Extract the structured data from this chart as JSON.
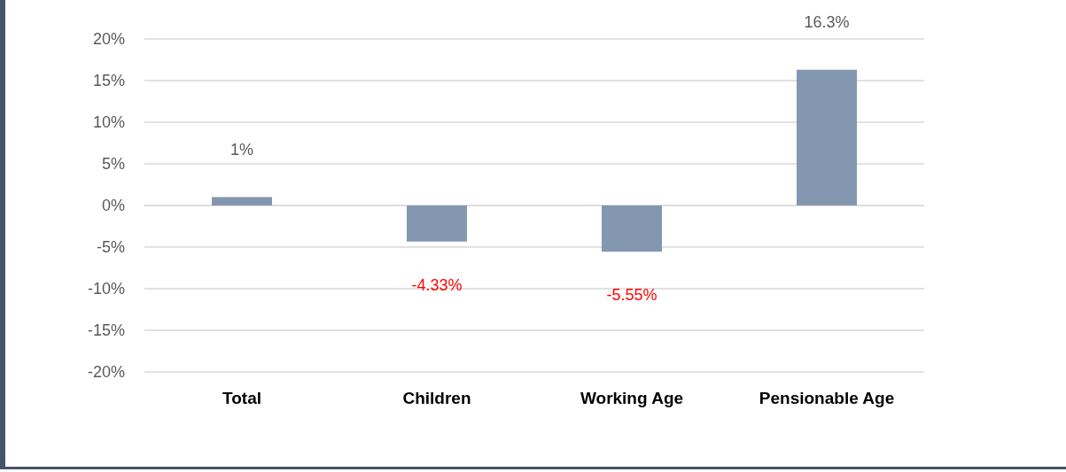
{
  "chart_data": {
    "type": "bar",
    "categories": [
      "Total",
      "Children",
      "Working Age",
      "Pensionable Age"
    ],
    "values": [
      1,
      -4.33,
      -5.55,
      16.3
    ],
    "value_labels": [
      "1%",
      "-4.33%",
      "-5.55%",
      "16.3%"
    ],
    "color": "#8497b0",
    "ylim": [
      -20,
      20
    ],
    "yticks": [
      {
        "value": -20,
        "label": "-20%"
      },
      {
        "value": -15,
        "label": "-15%"
      },
      {
        "value": -10,
        "label": "-10%"
      },
      {
        "value": -5,
        "label": "-5%"
      },
      {
        "value": 0,
        "label": "0%"
      },
      {
        "value": 5,
        "label": "5%"
      },
      {
        "value": 10,
        "label": "10%"
      },
      {
        "value": 15,
        "label": "15%"
      },
      {
        "value": 20,
        "label": "20%"
      }
    ],
    "grid": "y"
  }
}
